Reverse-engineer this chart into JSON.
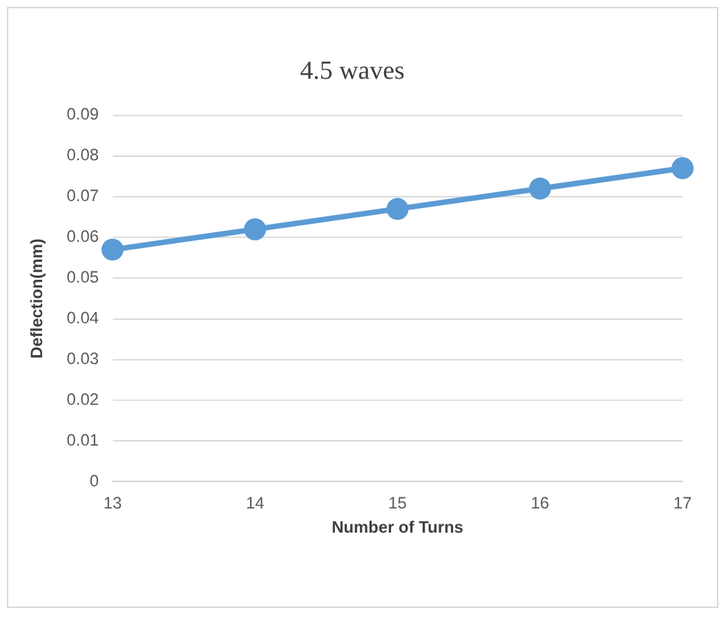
{
  "chart_data": {
    "type": "line",
    "title": "4.5 waves",
    "xlabel": "Number of Turns",
    "ylabel": "Deflection(mm)",
    "categories": [
      "13",
      "14",
      "15",
      "16",
      "17"
    ],
    "series": [
      {
        "color": "#5b9bd5",
        "values": [
          0.057,
          0.062,
          0.067,
          0.072,
          0.077
        ]
      }
    ],
    "ylim": [
      0,
      0.09
    ],
    "yticks": [
      0,
      0.01,
      0.02,
      0.03,
      0.04,
      0.05,
      0.06,
      0.07,
      0.08,
      0.09
    ],
    "grid": "y",
    "legend": false,
    "marker": "circle",
    "line_style": "solid"
  }
}
